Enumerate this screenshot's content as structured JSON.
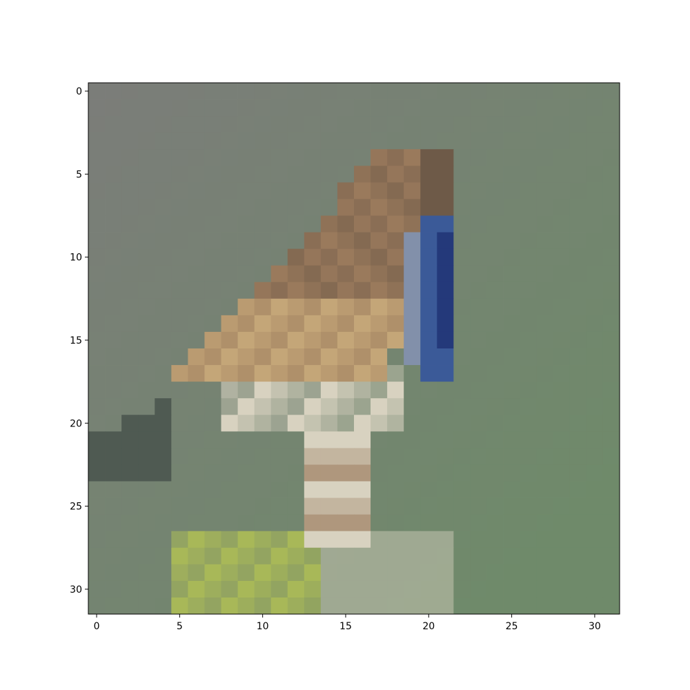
{
  "figure": {
    "type": "pixel-image",
    "image_description_icon": "pixelated-bird-image",
    "grid_size": [
      32,
      32
    ],
    "x_ticks": [
      "0",
      "5",
      "10",
      "15",
      "20",
      "25",
      "30"
    ],
    "y_ticks": [
      "0",
      "5",
      "10",
      "15",
      "20",
      "25",
      "30"
    ],
    "x_range": [
      -0.5,
      31.5
    ],
    "y_range": [
      -0.5,
      31.5
    ],
    "palette": {
      "bg_gray": "#7b7d79",
      "bg_green": "#6f8a6a",
      "brown": "#9a7a5c",
      "dark_brown": "#6e5a48",
      "tan": "#c4a678",
      "blue": "#3b5a98",
      "dark_blue": "#24397a",
      "light": "#d8d2c0",
      "yellow_green": "#a8b858",
      "dark": "#4f5a52"
    }
  }
}
